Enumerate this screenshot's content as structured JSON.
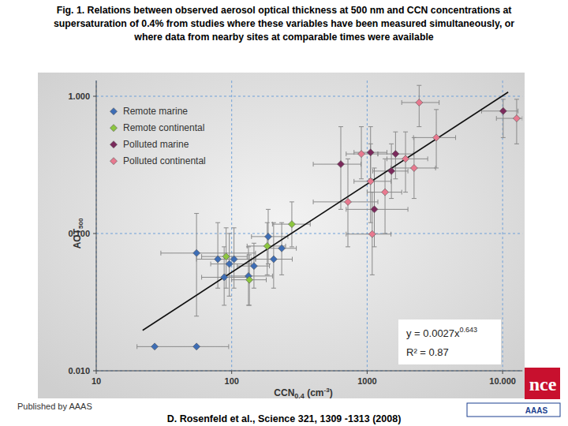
{
  "slide_title": [
    "Fig. 1. Relations between observed aerosol optical thickness at 500 nm and CCN concentrations at",
    "supersaturation of 0.4% from studies where these variables have been measured simultaneously, or",
    "where data from nearby sites at comparable times were available"
  ],
  "chart_data": {
    "type": "scatter",
    "log": true,
    "grid": true,
    "legend": "top-left",
    "x_label": {
      "text": "CCN",
      "subscript": "0.4",
      "unit": " (cm",
      "unit_superscript": "-3",
      "unit_end": ")"
    },
    "y_label": {
      "text": "AOT",
      "subscript": "500"
    },
    "xlim": [
      10,
      14000
    ],
    "ylim": [
      0.01,
      1.3
    ],
    "xticks": [
      10,
      100,
      1000,
      {
        "value": 10000,
        "label": "10.000"
      }
    ],
    "yticks": [
      {
        "value": 0.01,
        "label": "0.010"
      },
      {
        "value": 0.1,
        "label": "0.100"
      },
      {
        "value": 1,
        "label": "1.000"
      }
    ],
    "series": [
      {
        "name": "Remote marine",
        "color": "#3d6db5",
        "marker": "diamond",
        "x": [
          27,
          55,
          55,
          79,
          88,
          96,
          104,
          133,
          146,
          186,
          204,
          234
        ],
        "values": [
          0.015,
          0.015,
          0.072,
          0.065,
          0.048,
          0.06,
          0.065,
          0.049,
          0.058,
          0.095,
          0.065,
          0.078
        ],
        "x_err": [
          [
            20,
            95
          ],
          null,
          [
            30,
            150
          ],
          [
            55,
            140
          ],
          [
            60,
            130
          ],
          [
            70,
            140
          ],
          [
            80,
            150
          ],
          [
            90,
            200
          ],
          [
            110,
            190
          ],
          [
            140,
            260
          ],
          [
            150,
            280
          ],
          [
            180,
            300
          ]
        ],
        "y_err": [
          null,
          null,
          [
            0.025,
            0.14
          ],
          [
            0.04,
            0.12
          ],
          [
            0.03,
            0.08
          ],
          [
            0.035,
            0.1
          ],
          [
            0.04,
            0.11
          ],
          [
            0.03,
            0.08
          ],
          [
            0.04,
            0.085
          ],
          [
            0.06,
            0.15
          ],
          [
            0.04,
            0.12
          ],
          [
            0.05,
            0.12
          ]
        ]
      },
      {
        "name": "Remote continental",
        "color": "#8cc63f",
        "marker": "diamond",
        "x": [
          91,
          135,
          183,
          278
        ],
        "values": [
          0.068,
          0.046,
          0.081,
          0.117
        ],
        "x_err": [
          [
            60,
            130
          ],
          [
            100,
            180
          ],
          [
            130,
            250
          ],
          [
            200,
            380
          ]
        ],
        "y_err": [
          [
            0.04,
            0.11
          ],
          [
            0.03,
            0.07
          ],
          [
            0.05,
            0.12
          ],
          [
            0.08,
            0.17
          ]
        ]
      },
      {
        "name": "Polluted marine",
        "color": "#7b2a5c",
        "marker": "diamond",
        "x": [
          639,
          1060,
          1130,
          1510,
          1620,
          10100
        ],
        "values": [
          0.32,
          0.39,
          0.15,
          0.285,
          0.38,
          0.78
        ],
        "x_err": [
          [
            400,
            900
          ],
          [
            800,
            1400
          ],
          [
            700,
            2000
          ],
          [
            1100,
            2000
          ],
          [
            1200,
            2200
          ],
          [
            7000,
            13000
          ]
        ],
        "y_err": [
          [
            0.15,
            0.6
          ],
          [
            0.25,
            0.6
          ],
          [
            0.08,
            0.3
          ],
          [
            0.18,
            0.45
          ],
          [
            0.25,
            0.55
          ],
          [
            0.5,
            0.95
          ]
        ]
      },
      {
        "name": "Polluted continental",
        "color": "#e8798f",
        "marker": "diamond",
        "x": [
          721,
          906,
          1060,
          1090,
          1355,
          1920,
          2220,
          2420,
          3240,
          12700
        ],
        "values": [
          0.17,
          0.38,
          0.24,
          0.099,
          0.2,
          0.35,
          0.3,
          0.9,
          0.5,
          0.69
        ],
        "x_err": [
          [
            400,
            1200
          ],
          [
            700,
            1200
          ],
          [
            800,
            1500
          ],
          [
            700,
            1500
          ],
          [
            1000,
            1800
          ],
          [
            1400,
            2800
          ],
          [
            1500,
            3200
          ],
          [
            1800,
            3400
          ],
          [
            2200,
            4500
          ],
          [
            9000,
            14000
          ]
        ],
        "y_err": [
          [
            0.08,
            0.35
          ],
          [
            0.25,
            0.6
          ],
          [
            0.12,
            0.45
          ],
          [
            0.05,
            0.2
          ],
          [
            0.1,
            0.35
          ],
          [
            0.2,
            0.55
          ],
          [
            0.18,
            0.5
          ],
          [
            0.6,
            1.2
          ],
          [
            0.3,
            0.8
          ],
          [
            0.45,
            0.95
          ]
        ]
      }
    ],
    "fit": {
      "coefficient": 0.0027,
      "exponent": 0.643,
      "x_range": [
        22,
        11000
      ]
    },
    "annotations": [
      {
        "text": "y = 0.0027x",
        "superscript": "0.643"
      },
      {
        "text": "R² = 0.87"
      }
    ]
  },
  "footer": {
    "published": "Published by AAAS",
    "citation": "D. Rosenfeld et al., Science 321, 1309 -1313 (2008)"
  },
  "logo": {
    "text": "nce",
    "subtext": "AAAS"
  }
}
